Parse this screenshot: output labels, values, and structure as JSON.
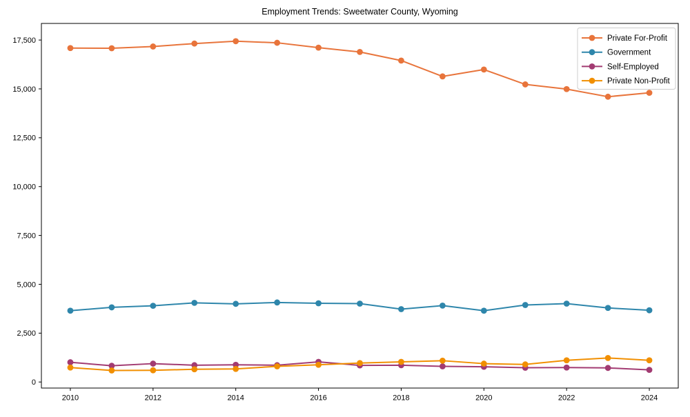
{
  "chart_data": {
    "type": "line",
    "title": "Employment Trends: Sweetwater County, Wyoming",
    "xlabel": "",
    "ylabel": "",
    "x": [
      2010,
      2011,
      2012,
      2013,
      2014,
      2015,
      2016,
      2017,
      2018,
      2019,
      2020,
      2021,
      2022,
      2023,
      2024
    ],
    "series": [
      {
        "name": "Private For-Profit",
        "color": "#E8743B",
        "values": [
          17090,
          17080,
          17170,
          17320,
          17440,
          17360,
          17110,
          16890,
          16450,
          15640,
          15990,
          15230,
          14990,
          14600,
          14800
        ]
      },
      {
        "name": "Government",
        "color": "#2E86AB",
        "values": [
          3650,
          3820,
          3900,
          4050,
          4000,
          4070,
          4030,
          4010,
          3730,
          3910,
          3650,
          3940,
          4010,
          3790,
          3670
        ]
      },
      {
        "name": "Self-Employed",
        "color": "#A23B72",
        "values": [
          1010,
          830,
          940,
          860,
          880,
          860,
          1030,
          850,
          860,
          800,
          780,
          730,
          740,
          720,
          620
        ]
      },
      {
        "name": "Private Non-Profit",
        "color": "#F18F01",
        "values": [
          740,
          590,
          600,
          650,
          670,
          800,
          880,
          970,
          1030,
          1090,
          940,
          900,
          1110,
          1230,
          1110
        ]
      }
    ],
    "xticks": [
      2010,
      2012,
      2014,
      2016,
      2018,
      2020,
      2022,
      2024
    ],
    "yticks": [
      0,
      2500,
      5000,
      7500,
      10000,
      12500,
      15000,
      17500
    ],
    "xlim": [
      2009.3,
      2024.7
    ],
    "ylim": [
      -310,
      18350
    ],
    "legend_position": "upper right",
    "grid": false,
    "marker": "circle",
    "axis_color": "#000000",
    "legend_border_color": "#cccccc"
  }
}
